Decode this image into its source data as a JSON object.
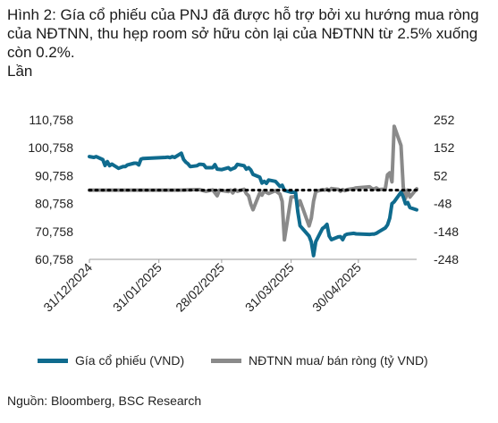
{
  "title": "Hình 2: Gía cổ phiếu của PNJ đã được hỗ trợ bởi xu hướng mua ròng của NĐTNN, thu hẹp room sở hữu còn lại của NĐTNN từ 2.5% xuống còn 0.2%.",
  "unit_label": "Lần",
  "source": "Nguồn: Bloomberg, BSC Research",
  "colors": {
    "price": "#0f6b8e",
    "flow": "#8a8a8a",
    "dotted": "#000000"
  },
  "chart_data": {
    "type": "line",
    "x_tick_labels": [
      "31/12/2024",
      "31/01/2025",
      "28/02/2025",
      "31/03/2025",
      "30/04/2025"
    ],
    "x_range": [
      "2024-12-31",
      "2025-05-26"
    ],
    "left_axis": {
      "ticks": [
        "60,758",
        "70,758",
        "80,758",
        "90,758",
        "100,758",
        "110,758"
      ],
      "ylim": [
        60758,
        110758
      ]
    },
    "right_axis": {
      "ticks": [
        "-248",
        "-148",
        "-48",
        "52",
        "152",
        "252"
      ],
      "ylim": [
        -248,
        252
      ]
    },
    "grid": false,
    "legend_position": "bottom",
    "series": [
      {
        "name": "Gía cổ phiếu (VND)",
        "axis": "left",
        "points": [
          [
            "2024-12-31",
            97600
          ],
          [
            "2025-01-02",
            97300
          ],
          [
            "2025-01-03",
            97600
          ],
          [
            "2025-01-06",
            96500
          ],
          [
            "2025-01-07",
            94400
          ],
          [
            "2025-01-08",
            95800
          ],
          [
            "2025-01-09",
            94300
          ],
          [
            "2025-01-10",
            94900
          ],
          [
            "2025-01-13",
            93400
          ],
          [
            "2025-01-14",
            93700
          ],
          [
            "2025-01-15",
            94000
          ],
          [
            "2025-01-16",
            94000
          ],
          [
            "2025-01-17",
            94600
          ],
          [
            "2025-01-20",
            95200
          ],
          [
            "2025-01-21",
            95200
          ],
          [
            "2025-01-22",
            94600
          ],
          [
            "2025-01-23",
            96700
          ],
          [
            "2025-01-24",
            96900
          ],
          [
            "2025-02-03",
            97300
          ],
          [
            "2025-02-04",
            97400
          ],
          [
            "2025-02-05",
            97200
          ],
          [
            "2025-02-06",
            97600
          ],
          [
            "2025-02-07",
            97300
          ],
          [
            "2025-02-10",
            98800
          ],
          [
            "2025-02-11",
            96600
          ],
          [
            "2025-02-12",
            95600
          ],
          [
            "2025-02-13",
            95000
          ],
          [
            "2025-02-14",
            94000
          ],
          [
            "2025-02-17",
            94300
          ],
          [
            "2025-02-18",
            94800
          ],
          [
            "2025-02-19",
            94800
          ],
          [
            "2025-02-20",
            94700
          ],
          [
            "2025-02-21",
            93600
          ],
          [
            "2025-02-24",
            93600
          ],
          [
            "2025-02-25",
            94700
          ],
          [
            "2025-02-26",
            93100
          ],
          [
            "2025-02-27",
            93000
          ],
          [
            "2025-02-28",
            92900
          ],
          [
            "2025-03-03",
            93600
          ],
          [
            "2025-03-04",
            92900
          ],
          [
            "2025-03-05",
            93300
          ],
          [
            "2025-03-06",
            93600
          ],
          [
            "2025-03-07",
            94800
          ],
          [
            "2025-03-10",
            94300
          ],
          [
            "2025-03-11",
            93100
          ],
          [
            "2025-03-12",
            93600
          ],
          [
            "2025-03-13",
            92800
          ],
          [
            "2025-03-14",
            91200
          ],
          [
            "2025-03-17",
            90200
          ],
          [
            "2025-03-18",
            88100
          ],
          [
            "2025-03-19",
            88700
          ],
          [
            "2025-03-20",
            88000
          ],
          [
            "2025-03-21",
            89200
          ],
          [
            "2025-03-24",
            88700
          ],
          [
            "2025-03-25",
            87800
          ],
          [
            "2025-03-26",
            86900
          ],
          [
            "2025-03-27",
            87300
          ],
          [
            "2025-03-28",
            85500
          ],
          [
            "2025-03-31",
            84800
          ],
          [
            "2025-04-01",
            84800
          ],
          [
            "2025-04-02",
            84700
          ],
          [
            "2025-04-03",
            77800
          ],
          [
            "2025-04-04",
            72800
          ],
          [
            "2025-04-08",
            69100
          ],
          [
            "2025-04-09",
            67000
          ],
          [
            "2025-04-10",
            62100
          ],
          [
            "2025-04-11",
            67100
          ],
          [
            "2025-04-14",
            71800
          ],
          [
            "2025-04-15",
            72400
          ],
          [
            "2025-04-16",
            73300
          ],
          [
            "2025-04-17",
            69100
          ],
          [
            "2025-04-18",
            67800
          ],
          [
            "2025-04-21",
            68800
          ],
          [
            "2025-04-22",
            68900
          ],
          [
            "2025-04-23",
            67800
          ],
          [
            "2025-04-24",
            69400
          ],
          [
            "2025-04-25",
            69800
          ],
          [
            "2025-04-28",
            70100
          ],
          [
            "2025-04-29",
            69900
          ],
          [
            "2025-05-05",
            69700
          ],
          [
            "2025-05-06",
            69800
          ],
          [
            "2025-05-07",
            69800
          ],
          [
            "2025-05-08",
            70100
          ],
          [
            "2025-05-09",
            70600
          ],
          [
            "2025-05-12",
            72000
          ],
          [
            "2025-05-13",
            73100
          ],
          [
            "2025-05-14",
            75500
          ],
          [
            "2025-05-15",
            80700
          ],
          [
            "2025-05-16",
            81400
          ],
          [
            "2025-05-19",
            84800
          ],
          [
            "2025-05-20",
            83200
          ],
          [
            "2025-05-21",
            80700
          ],
          [
            "2025-05-22",
            81100
          ],
          [
            "2025-05-23",
            79300
          ],
          [
            "2025-05-26",
            78500
          ]
        ]
      },
      {
        "name": "NĐTNN mua/ bán ròng (tỷ VND)",
        "axis": "right",
        "points": [
          [
            "2024-12-31",
            0
          ],
          [
            "2025-01-06",
            0
          ],
          [
            "2025-01-13",
            0
          ],
          [
            "2025-01-20",
            0
          ],
          [
            "2025-01-24",
            0
          ],
          [
            "2025-02-04",
            0
          ],
          [
            "2025-02-10",
            0
          ],
          [
            "2025-02-14",
            1
          ],
          [
            "2025-02-18",
            2
          ],
          [
            "2025-02-21",
            -4
          ],
          [
            "2025-02-24",
            1
          ],
          [
            "2025-02-26",
            -20
          ],
          [
            "2025-02-27",
            0
          ],
          [
            "2025-03-03",
            -5
          ],
          [
            "2025-03-04",
            0
          ],
          [
            "2025-03-05",
            -10
          ],
          [
            "2025-03-06",
            2
          ],
          [
            "2025-03-07",
            -4
          ],
          [
            "2025-03-10",
            3
          ],
          [
            "2025-03-11",
            -12
          ],
          [
            "2025-03-12",
            -20
          ],
          [
            "2025-03-13",
            -50
          ],
          [
            "2025-03-14",
            -70
          ],
          [
            "2025-03-17",
            -10
          ],
          [
            "2025-03-18",
            -18
          ],
          [
            "2025-03-19",
            -2
          ],
          [
            "2025-03-20",
            -8
          ],
          [
            "2025-03-21",
            -12
          ],
          [
            "2025-03-24",
            -2
          ],
          [
            "2025-03-25",
            -8
          ],
          [
            "2025-03-26",
            -14
          ],
          [
            "2025-03-27",
            -40
          ],
          [
            "2025-03-28",
            -178
          ],
          [
            "2025-03-31",
            -25
          ],
          [
            "2025-04-01",
            -24
          ],
          [
            "2025-04-02",
            -22
          ],
          [
            "2025-04-03",
            -58
          ],
          [
            "2025-04-04",
            -38
          ],
          [
            "2025-04-08",
            -128
          ],
          [
            "2025-04-09",
            -100
          ],
          [
            "2025-04-10",
            -40
          ],
          [
            "2025-04-11",
            -5
          ],
          [
            "2025-04-14",
            2
          ],
          [
            "2025-04-15",
            0
          ],
          [
            "2025-04-16",
            4
          ],
          [
            "2025-04-17",
            -2
          ],
          [
            "2025-04-18",
            6
          ],
          [
            "2025-04-21",
            3
          ],
          [
            "2025-04-22",
            -4
          ],
          [
            "2025-04-23",
            2
          ],
          [
            "2025-04-24",
            -2
          ],
          [
            "2025-04-25",
            2
          ],
          [
            "2025-04-28",
            6
          ],
          [
            "2025-04-29",
            8
          ],
          [
            "2025-05-05",
            12
          ],
          [
            "2025-05-06",
            6
          ],
          [
            "2025-05-07",
            4
          ],
          [
            "2025-05-08",
            8
          ],
          [
            "2025-05-09",
            2
          ],
          [
            "2025-05-12",
            4
          ],
          [
            "2025-05-13",
            55
          ],
          [
            "2025-05-14",
            62
          ],
          [
            "2025-05-15",
            30
          ],
          [
            "2025-05-16",
            229
          ],
          [
            "2025-05-19",
            160
          ],
          [
            "2025-05-20",
            12
          ],
          [
            "2025-05-21",
            -30
          ],
          [
            "2025-05-22",
            0
          ],
          [
            "2025-05-23",
            -25
          ],
          [
            "2025-05-26",
            5
          ]
        ]
      }
    ]
  }
}
